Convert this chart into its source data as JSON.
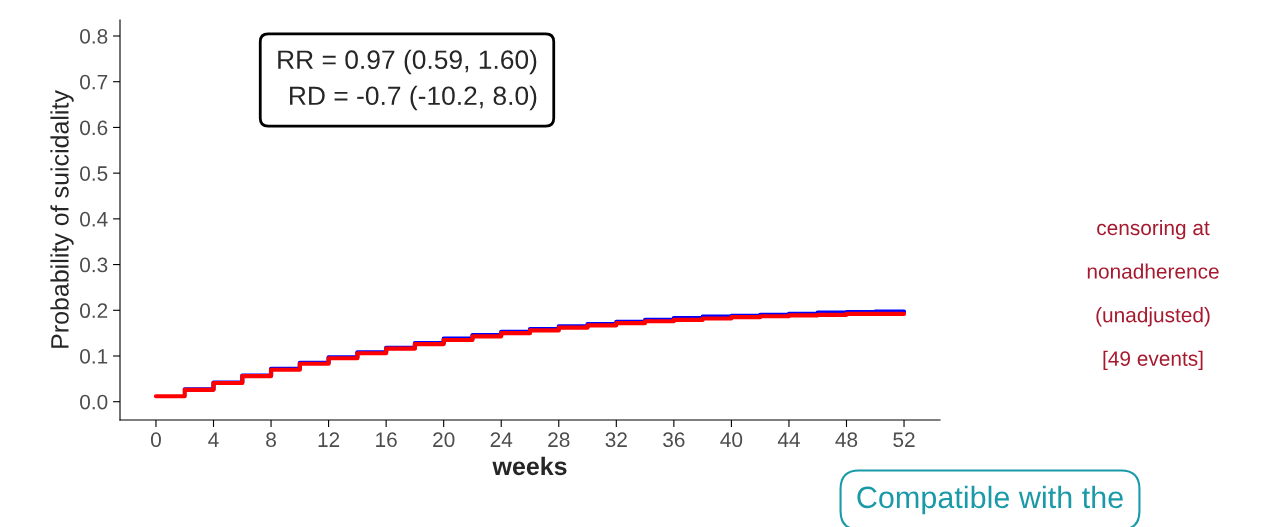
{
  "chart_data": {
    "type": "step",
    "xlabel": "weeks",
    "ylabel": "Probability of suicidality",
    "x": [
      0,
      2,
      4,
      6,
      8,
      10,
      12,
      14,
      16,
      18,
      20,
      22,
      24,
      26,
      28,
      30,
      32,
      34,
      36,
      38,
      40,
      42,
      44,
      46,
      48,
      50,
      52
    ],
    "series": [
      {
        "color": "#0000ff",
        "values": [
          null,
          0.027,
          0.042,
          0.057,
          0.072,
          0.085,
          0.097,
          0.108,
          0.118,
          0.128,
          0.138,
          0.146,
          0.153,
          0.159,
          0.165,
          0.17,
          0.175,
          0.179,
          0.183,
          0.186,
          0.188,
          0.19,
          0.192,
          0.195,
          0.196,
          0.197,
          0.197
        ]
      },
      {
        "color": "#ff0000",
        "values": [
          0.012,
          0.026,
          0.041,
          0.056,
          0.07,
          0.083,
          0.095,
          0.106,
          0.116,
          0.126,
          0.135,
          0.143,
          0.15,
          0.156,
          0.162,
          0.167,
          0.172,
          0.176,
          0.179,
          0.182,
          0.185,
          0.187,
          0.189,
          0.19,
          0.192,
          0.192,
          0.192
        ]
      }
    ],
    "xlim": [
      -2.5,
      54.5
    ],
    "xticks": [
      0,
      4,
      8,
      12,
      16,
      20,
      24,
      28,
      32,
      36,
      40,
      44,
      48,
      52
    ],
    "ylim": [
      -0.04,
      0.835
    ],
    "yticks": [
      {
        "value": 0,
        "label": "0.0"
      },
      0.1,
      0.2,
      0.3,
      0.4,
      0.5,
      0.6,
      0.7,
      0.8
    ],
    "grid": false,
    "legend": false,
    "line_style": "solid",
    "marker": "none",
    "annotations": [
      "RR = 0.97 (0.59, 1.60)\nRD = -0.7 (-10.2, 8.0)",
      "censoring at\nnonadherence\n(unadjusted)\n[49 events]",
      "Compatible with the"
    ]
  }
}
